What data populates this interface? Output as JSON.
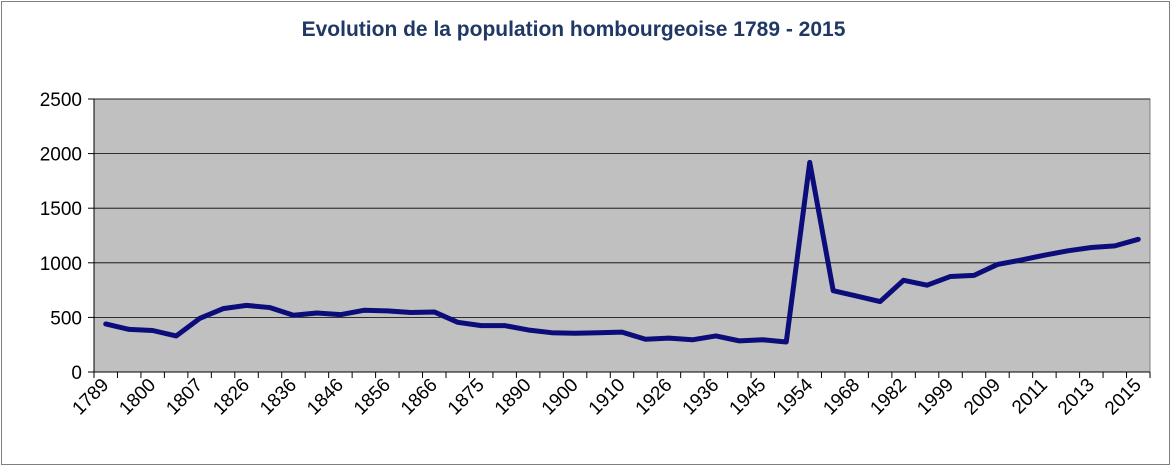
{
  "chart_data": {
    "type": "line",
    "title": "Evolution de la population hombourgeoise 1789 - 2015",
    "xlabel": "",
    "ylabel": "",
    "ylim": [
      0,
      2500
    ],
    "yticks": [
      0,
      500,
      1000,
      1500,
      2000,
      2500
    ],
    "grid": true,
    "legend": "none",
    "colors": {
      "line": "#0c0c7a",
      "plot_bg": "#c0c0c0",
      "grid": "#000000",
      "title": "#1f3864"
    },
    "x_tick_labels": [
      "1789",
      "1800",
      "1807",
      "1826",
      "1836",
      "1846",
      "1856",
      "1866",
      "1875",
      "1890",
      "1900",
      "1910",
      "1926",
      "1936",
      "1945",
      "1954",
      "1968",
      "1982",
      "1999",
      "2009",
      "2011",
      "2013",
      "2015"
    ],
    "series": [
      {
        "values": [
          440,
          390,
          380,
          330,
          490,
          580,
          610,
          590,
          520,
          540,
          525,
          565,
          560,
          545,
          550,
          455,
          425,
          425,
          385,
          360,
          355,
          360,
          365,
          300,
          310,
          295,
          330,
          285,
          295,
          275,
          1920,
          745,
          695,
          645,
          840,
          795,
          875,
          885,
          985,
          1025,
          1070,
          1110,
          1140,
          1155,
          1215
        ]
      }
    ]
  }
}
